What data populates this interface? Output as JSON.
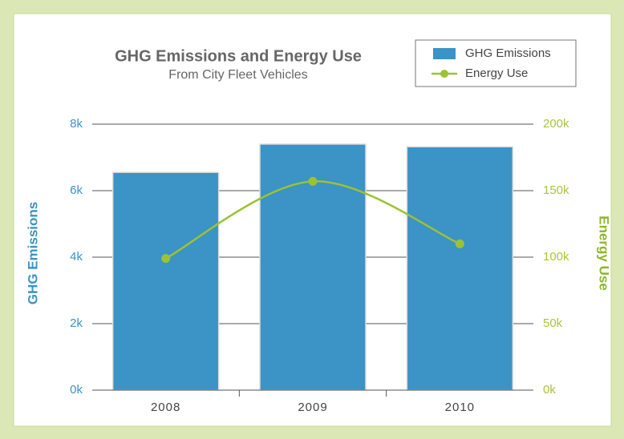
{
  "chart_data": {
    "type": "bar-line",
    "title": "GHG Emissions and Energy Use",
    "subtitle": "From City Fleet Vehicles",
    "categories": [
      "2008",
      "2009",
      "2010"
    ],
    "series": [
      {
        "name": "GHG Emissions",
        "type": "bar",
        "color": "#3b93c6",
        "values": [
          6550,
          7400,
          7320
        ]
      },
      {
        "name": "Energy Use",
        "type": "line",
        "color": "#9cc232",
        "axis": "y2",
        "values": [
          99000,
          157000,
          110000
        ]
      }
    ],
    "ylabel": "GHG Emissions",
    "y2label": "Energy Use",
    "ylim": [
      0,
      8000
    ],
    "yticks": [
      {
        "value": 0,
        "label": "0k"
      },
      {
        "value": 2000,
        "label": "2k"
      },
      {
        "value": 4000,
        "label": "4k"
      },
      {
        "value": 6000,
        "label": "6k"
      },
      {
        "value": 8000,
        "label": "8k"
      }
    ],
    "y2lim": [
      0,
      200000
    ],
    "y2ticks": [
      {
        "value": 0,
        "label": "0k"
      },
      {
        "value": 50000,
        "label": "50k"
      },
      {
        "value": 100000,
        "label": "100k"
      },
      {
        "value": 150000,
        "label": "150k"
      },
      {
        "value": 200000,
        "label": "200k"
      }
    ],
    "legend": "top-right",
    "grid": true
  }
}
